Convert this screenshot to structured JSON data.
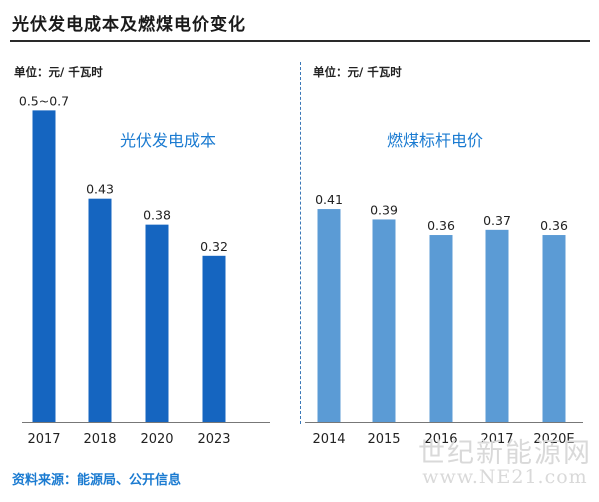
{
  "title": "光伏发电成本及燃煤电价变化",
  "source": "资料来源：能源局、公开信息",
  "watermark": {
    "line1": "世纪新能源网",
    "line2": "www.NE21.com"
  },
  "colors": {
    "left_bar": "#1565c0",
    "right_bar": "#5b9bd5",
    "title_text": "#1b7bd1"
  },
  "chart_data": [
    {
      "type": "bar",
      "title": "光伏发电成本",
      "unit": "单位：元/ 千瓦时",
      "categories": [
        "2017",
        "2018",
        "2020",
        "2023"
      ],
      "values": [
        0.6,
        0.43,
        0.38,
        0.32
      ],
      "labels": [
        "0.5~0.7",
        "0.43",
        "0.38",
        "0.32"
      ],
      "ylim": [
        0,
        0.62
      ]
    },
    {
      "type": "bar",
      "title": "燃煤标杆电价",
      "unit": "单位：元/ 千瓦时",
      "categories": [
        "2014",
        "2015",
        "2016",
        "2017",
        "2020E"
      ],
      "values": [
        0.41,
        0.39,
        0.36,
        0.37,
        0.36
      ],
      "labels": [
        "0.41",
        "0.39",
        "0.36",
        "0.37",
        "0.36"
      ],
      "ylim": [
        0,
        0.62
      ]
    }
  ]
}
